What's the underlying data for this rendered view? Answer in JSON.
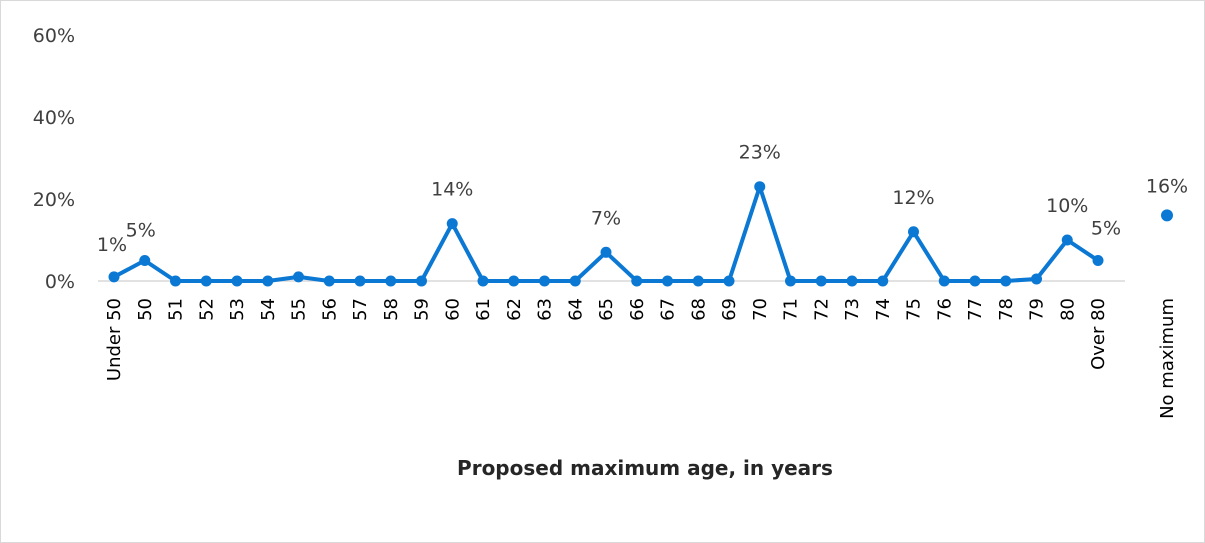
{
  "chart_data": {
    "type": "line",
    "xlabel": "Proposed maximum age, in years",
    "ylabel": "",
    "ylim": [
      0,
      60
    ],
    "yticks": [
      "0%",
      "20%",
      "40%",
      "60%"
    ],
    "ytick_values": [
      0,
      20,
      40,
      60
    ],
    "grid": false,
    "color": "#0b78d4",
    "categories": [
      "Under 50",
      "50",
      "51",
      "52",
      "53",
      "54",
      "55",
      "56",
      "57",
      "58",
      "59",
      "60",
      "61",
      "62",
      "63",
      "64",
      "65",
      "66",
      "67",
      "68",
      "69",
      "70",
      "71",
      "72",
      "73",
      "74",
      "75",
      "76",
      "77",
      "78",
      "79",
      "80",
      "Over 80"
    ],
    "values": [
      1,
      5,
      0,
      0,
      0,
      0,
      1,
      0,
      0,
      0,
      0,
      14,
      0,
      0,
      0,
      0,
      7,
      0,
      0,
      0,
      0,
      23,
      0,
      0,
      0,
      0,
      12,
      0,
      0,
      0,
      0.5,
      10,
      5
    ],
    "data_labels": [
      {
        "index": 0,
        "text": "1%"
      },
      {
        "index": 1,
        "text": "5%"
      },
      {
        "index": 11,
        "text": "14%"
      },
      {
        "index": 16,
        "text": "7%"
      },
      {
        "index": 21,
        "text": "23%"
      },
      {
        "index": 26,
        "text": "12%"
      },
      {
        "index": 31,
        "text": "10%"
      },
      {
        "index": 32,
        "text": "5%"
      }
    ],
    "separate_point": {
      "category": "No maximum",
      "value": 16,
      "label": "16%"
    }
  }
}
